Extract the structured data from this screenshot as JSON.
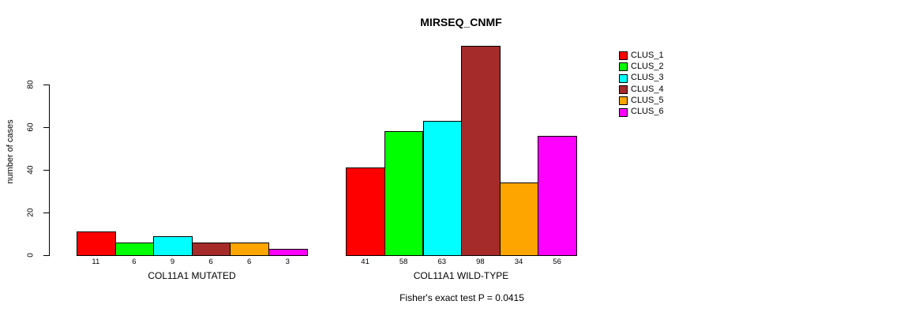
{
  "title": "MIRSEQ_CNMF",
  "footnote": "Fisher's exact test P = 0.0415",
  "chart_data": {
    "type": "bar",
    "title": "MIRSEQ_CNMF",
    "xlabel": "",
    "ylabel": "number of cases",
    "yticks": [
      0,
      20,
      40,
      60,
      80
    ],
    "ylim": [
      0,
      100
    ],
    "grid": false,
    "legend_position": "right",
    "legend": [
      "CLUS_1",
      "CLUS_2",
      "CLUS_3",
      "CLUS_4",
      "CLUS_5",
      "CLUS_6"
    ],
    "series_colors": [
      "#FF0000",
      "#00FF00",
      "#00FFFF",
      "#A52A2A",
      "#FFA500",
      "#FF00FF"
    ],
    "groups": [
      {
        "label": "COL11A1 MUTATED",
        "values": [
          11,
          6,
          9,
          6,
          6,
          3
        ]
      },
      {
        "label": "COL11A1 WILD-TYPE",
        "values": [
          41,
          58,
          63,
          98,
          34,
          56
        ]
      }
    ],
    "annotation": "Fisher's exact test P = 0.0415"
  }
}
